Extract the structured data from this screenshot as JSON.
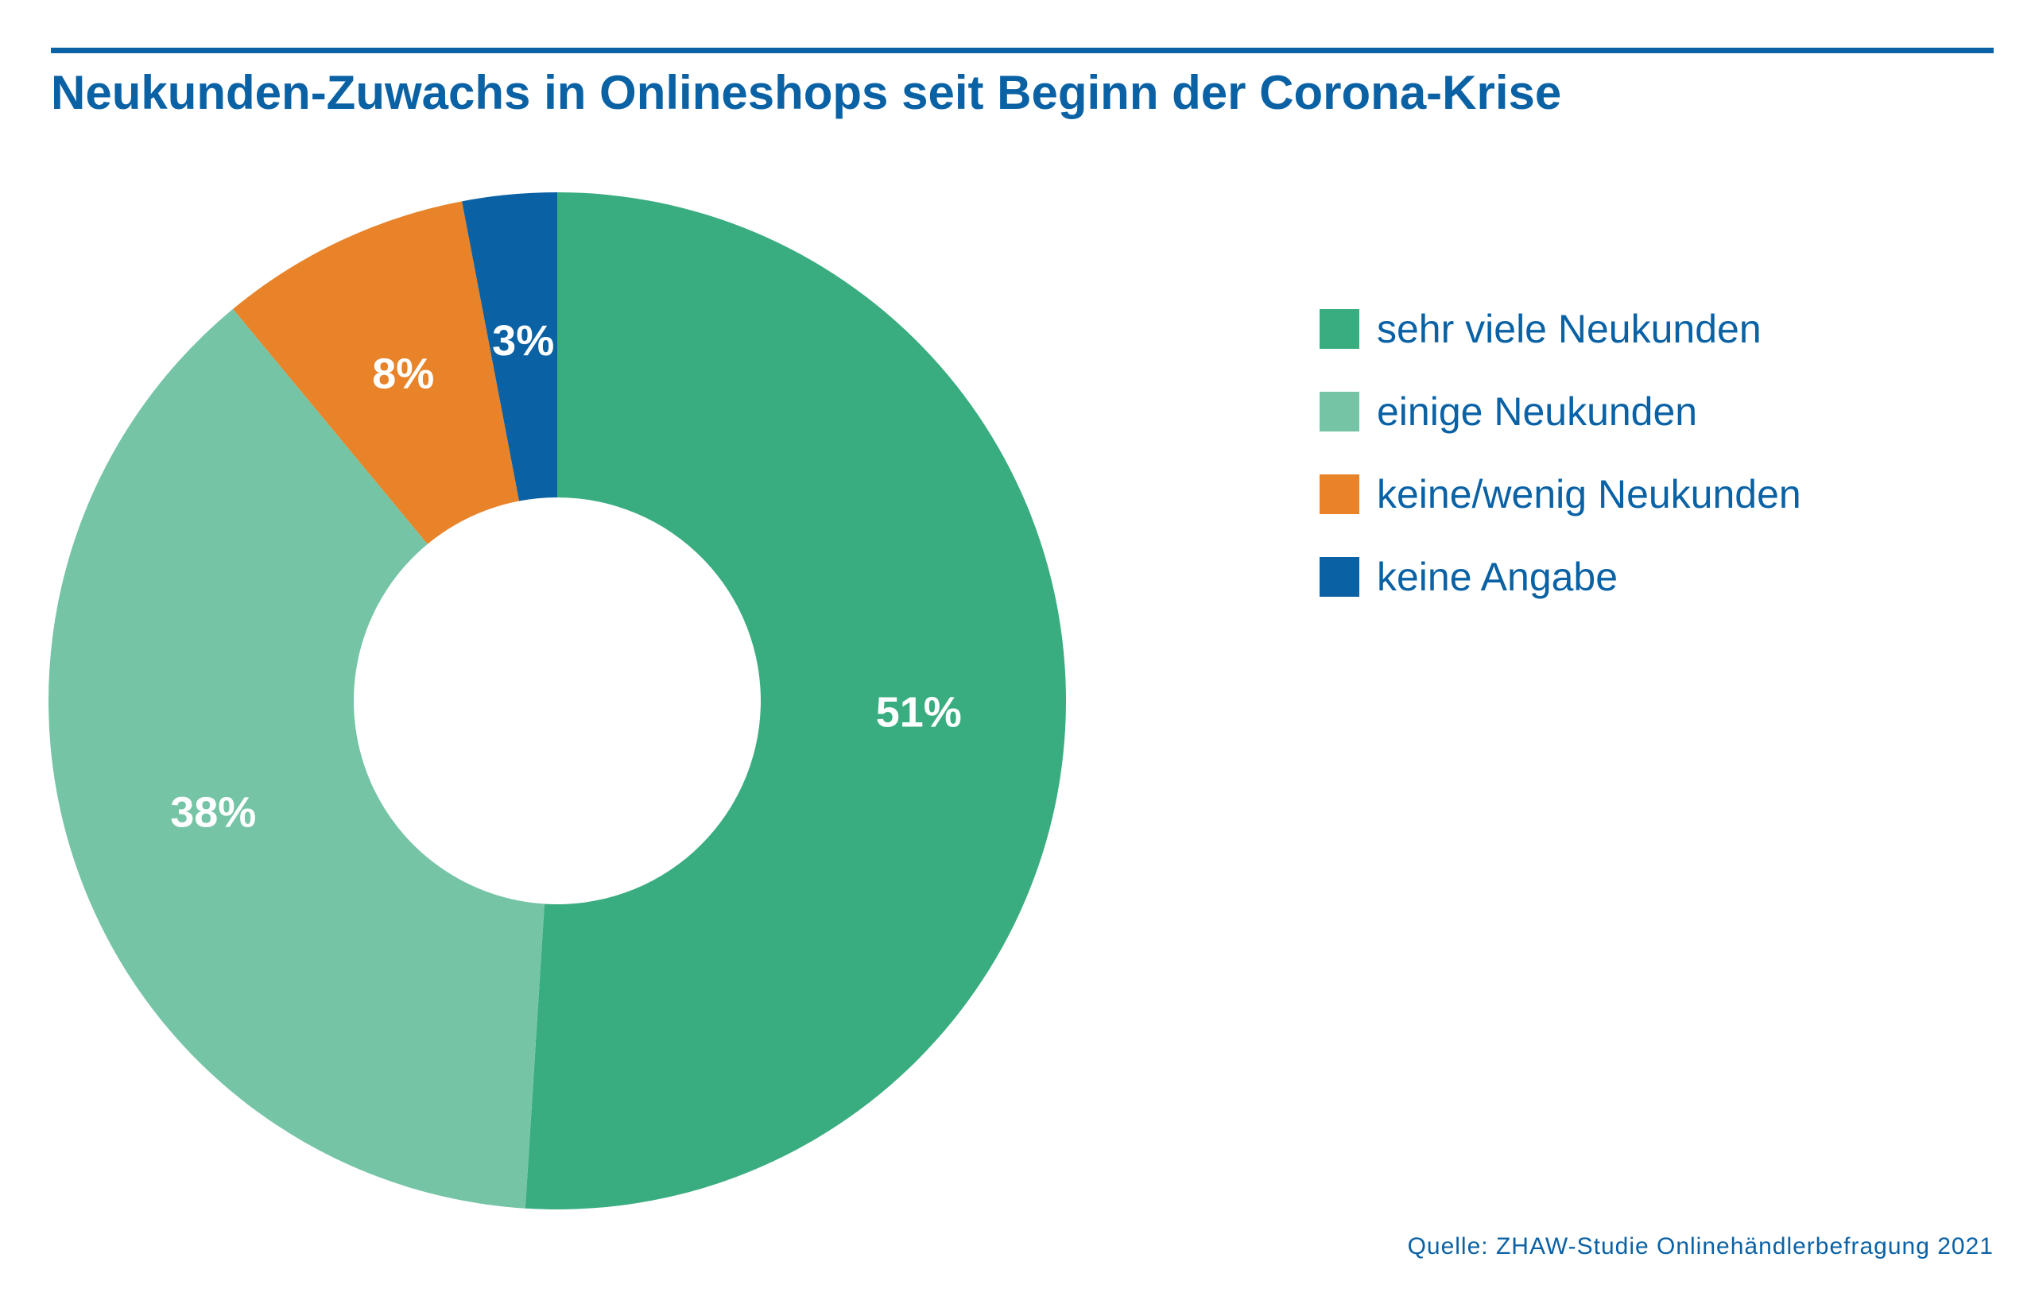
{
  "chart_data": {
    "type": "pie",
    "variant": "donut",
    "title": "Neukunden-Zuwachs in Onlineshops seit Beginn der Corona-Krise",
    "categories": [
      "sehr viele Neukunden",
      "einige Neukunden",
      "keine/wenig Neukunden",
      "keine Angabe"
    ],
    "values": [
      51,
      38,
      8,
      3
    ],
    "data_labels": [
      "51%",
      "38%",
      "8%",
      "3%"
    ],
    "colors": [
      "#3aad80",
      "#75c4a6",
      "#e8832a",
      "#0a62a5"
    ],
    "legend_position": "right",
    "start_angle_deg": 0,
    "direction": "clockwise",
    "source": "Quelle: ZHAW-Studie Onlinehändlerbefragung 2021"
  },
  "theme": {
    "accent": "#0a62a5",
    "background": "#ffffff",
    "label_color": "#ffffff"
  }
}
